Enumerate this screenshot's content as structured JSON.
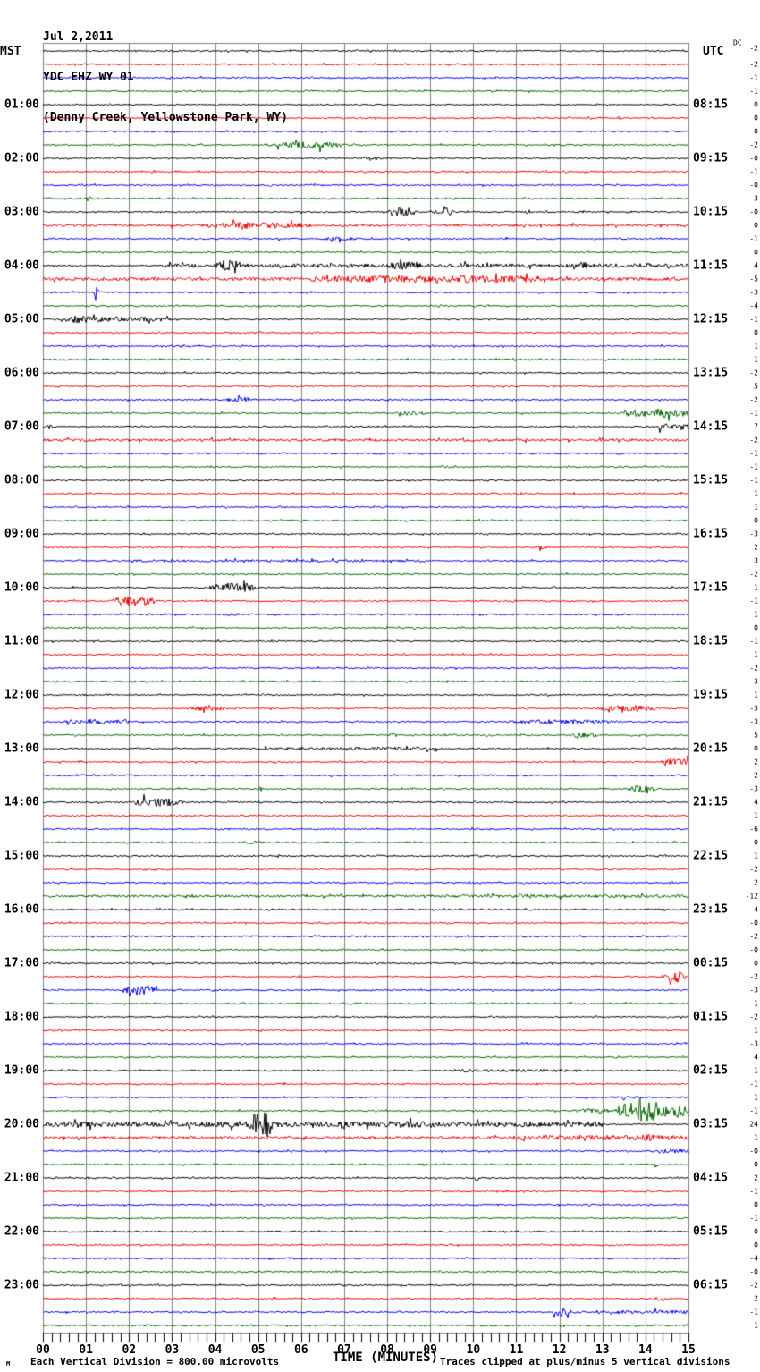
{
  "header": {
    "date": "Jul 2,2011",
    "station": "YDC EHZ WY 01",
    "location": "(Denny Creek, Yellowstone Park, WY)"
  },
  "axes": {
    "left_title": "MST",
    "right_title": "UTC",
    "dc_label": "DC",
    "x_title": "TIME (MINUTES)",
    "minute_ticks": [
      "00",
      "01",
      "02",
      "03",
      "04",
      "05",
      "06",
      "07",
      "08",
      "09",
      "10",
      "11",
      "12",
      "13",
      "14",
      "15"
    ]
  },
  "footer": {
    "scale_note": "Each Vertical Division =  800.00 microvolts",
    "clip_note": "Traces clipped at plus/minus 5 vertical divisions",
    "watermark": "M"
  },
  "colors": {
    "trace_cycle": [
      "#000000",
      "#ee0000",
      "#0000ee",
      "#006600"
    ],
    "grid": "#808080",
    "background": "#ffffff"
  },
  "chart_data": {
    "type": "seismogram-helicorder",
    "title": "YDC EHZ WY 01 (Denny Creek, Yellowstone Park, WY) Jul 2,2011",
    "xlabel": "TIME (MINUTES)",
    "x_range_minutes": [
      0,
      15
    ],
    "minutes_per_row": 15,
    "row_spacing_px": 15,
    "rows": [
      {
        "dc": "-2",
        "ev": []
      },
      {
        "dc": "-2",
        "ev": []
      },
      {
        "dc": "-1",
        "ev": []
      },
      {
        "dc": "-1",
        "ev": []
      },
      {
        "mst": "01:00",
        "utc": "08:15",
        "dc": "0",
        "ev": []
      },
      {
        "dc": "0",
        "ev": []
      },
      {
        "dc": "0",
        "ev": []
      },
      {
        "dc": "-2",
        "ev": [
          [
            5.0,
            7.2,
            3.5,
            "b"
          ],
          [
            6.2,
            6.7,
            4,
            "b"
          ]
        ]
      },
      {
        "mst": "02:00",
        "utc": "09:15",
        "dc": "-0",
        "ev": [
          [
            7.3,
            7.9,
            3,
            "b"
          ]
        ]
      },
      {
        "dc": "-1",
        "ev": []
      },
      {
        "dc": "-0",
        "ev": []
      },
      {
        "dc": "3",
        "ev": [
          [
            0.95,
            1.15,
            3,
            "b"
          ]
        ]
      },
      {
        "mst": "03:00",
        "utc": "10:15",
        "dc": "-0",
        "ev": [
          [
            8.0,
            8.7,
            5,
            "b"
          ],
          [
            9.05,
            9.55,
            5,
            "b"
          ],
          [
            11.1,
            11.4,
            2.5,
            "b"
          ],
          [
            12.4,
            12.65,
            2.5,
            "b"
          ]
        ]
      },
      {
        "dc": "0",
        "ev": [
          [
            0,
            15,
            1.3,
            "f"
          ],
          [
            3.4,
            6.5,
            3.5,
            "b"
          ],
          [
            4.4,
            4.9,
            4.5,
            "b"
          ]
        ]
      },
      {
        "dc": "-1",
        "ev": [
          [
            5.45,
            5.65,
            5,
            "s"
          ],
          [
            6.4,
            7.4,
            2,
            "b"
          ]
        ]
      },
      {
        "dc": "0",
        "ev": []
      },
      {
        "mst": "04:00",
        "utc": "11:15",
        "dc": "4",
        "ev": [
          [
            2.8,
            15,
            2.2,
            "f"
          ],
          [
            3.9,
            4.7,
            6,
            "b"
          ],
          [
            7.8,
            8.9,
            4.5,
            "b"
          ],
          [
            12.4,
            12.8,
            4,
            "b"
          ],
          [
            13.9,
            14.3,
            3,
            "b"
          ]
        ]
      },
      {
        "dc": "-5",
        "ev": [
          [
            0,
            15,
            1.8,
            "f"
          ],
          [
            6.2,
            11.6,
            3.5,
            "f"
          ],
          [
            7.2,
            8.6,
            4.5,
            "b"
          ],
          [
            9.3,
            10.6,
            4.5,
            "b"
          ]
        ]
      },
      {
        "dc": "-3",
        "ev": [
          [
            1.2,
            1.5,
            9,
            "s"
          ]
        ]
      },
      {
        "dc": "-4",
        "ev": []
      },
      {
        "mst": "05:00",
        "utc": "12:15",
        "dc": "-1",
        "ev": [
          [
            0,
            3.4,
            3,
            "b"
          ],
          [
            0.2,
            1.3,
            4,
            "b"
          ]
        ]
      },
      {
        "dc": "0",
        "ev": []
      },
      {
        "dc": "1",
        "ev": []
      },
      {
        "dc": "-1",
        "ev": []
      },
      {
        "mst": "06:00",
        "utc": "13:15",
        "dc": "-2",
        "ev": []
      },
      {
        "dc": "5",
        "ev": []
      },
      {
        "dc": "-2",
        "ev": [
          [
            4.2,
            5.0,
            3,
            "b"
          ]
        ]
      },
      {
        "dc": "-1",
        "ev": [
          [
            8.1,
            9.0,
            2.5,
            "b"
          ],
          [
            13.5,
            15,
            4,
            "f"
          ],
          [
            14.0,
            14.6,
            5,
            "b"
          ]
        ]
      },
      {
        "mst": "07:00",
        "utc": "14:15",
        "dc": "7",
        "ev": [
          [
            0.1,
            0.5,
            6,
            "s"
          ],
          [
            14.3,
            15,
            3.5,
            "f"
          ]
        ]
      },
      {
        "dc": "-2",
        "ev": [
          [
            0,
            15,
            1.4,
            "f"
          ]
        ]
      },
      {
        "dc": "-1",
        "ev": []
      },
      {
        "dc": "-1",
        "ev": [
          [
            9.2,
            9.5,
            2,
            "b"
          ]
        ]
      },
      {
        "mst": "08:00",
        "utc": "15:15",
        "dc": "-1",
        "ev": []
      },
      {
        "dc": "1",
        "ev": []
      },
      {
        "dc": "1",
        "ev": []
      },
      {
        "dc": "-0",
        "ev": []
      },
      {
        "mst": "09:00",
        "utc": "16:15",
        "dc": "-3",
        "ev": []
      },
      {
        "dc": "2",
        "ev": [
          [
            11.4,
            11.8,
            2,
            "b"
          ]
        ]
      },
      {
        "dc": "3",
        "ev": [
          [
            2,
            9,
            1.3,
            "f"
          ]
        ]
      },
      {
        "dc": "-2",
        "ev": []
      },
      {
        "mst": "10:00",
        "utc": "17:15",
        "dc": "1",
        "ev": [
          [
            3.8,
            5.0,
            5.5,
            "b"
          ]
        ]
      },
      {
        "dc": "-1",
        "ev": [
          [
            1.5,
            2.7,
            5.5,
            "b"
          ]
        ]
      },
      {
        "dc": "1",
        "ev": [
          [
            4.1,
            4.7,
            2,
            "b"
          ]
        ]
      },
      {
        "dc": "0",
        "ev": []
      },
      {
        "mst": "11:00",
        "utc": "18:15",
        "dc": "-1",
        "ev": []
      },
      {
        "dc": "1",
        "ev": []
      },
      {
        "dc": "-2",
        "ev": []
      },
      {
        "dc": "-3",
        "ev": []
      },
      {
        "mst": "12:00",
        "utc": "19:15",
        "dc": "1",
        "ev": []
      },
      {
        "dc": "-3",
        "ev": [
          [
            3.3,
            4.3,
            3,
            "b"
          ],
          [
            12.8,
            14.4,
            3.5,
            "b"
          ]
        ]
      },
      {
        "dc": "-3",
        "ev": [
          [
            0.3,
            2.2,
            3,
            "b"
          ],
          [
            10.5,
            13.6,
            2.5,
            "b"
          ]
        ]
      },
      {
        "dc": "5",
        "ev": [
          [
            8.0,
            8.25,
            3,
            "b"
          ],
          [
            12.1,
            13.0,
            3,
            "b"
          ]
        ]
      },
      {
        "mst": "13:00",
        "utc": "20:15",
        "dc": "0",
        "ev": [
          [
            5,
            9.2,
            1.8,
            "f"
          ]
        ]
      },
      {
        "dc": "2",
        "ev": [
          [
            14.4,
            15,
            4,
            "f"
          ]
        ]
      },
      {
        "dc": "2",
        "ev": []
      },
      {
        "dc": "-3",
        "ev": [
          [
            5.0,
            5.2,
            6,
            "s"
          ],
          [
            13.5,
            14.3,
            4,
            "b"
          ]
        ]
      },
      {
        "mst": "14:00",
        "utc": "21:15",
        "dc": "4",
        "ev": [
          [
            2.0,
            3.3,
            5,
            "b"
          ]
        ]
      },
      {
        "dc": "1",
        "ev": []
      },
      {
        "dc": "-6",
        "ev": []
      },
      {
        "dc": "-0",
        "ev": [
          [
            4.5,
            5.2,
            2,
            "b"
          ]
        ]
      },
      {
        "mst": "15:00",
        "utc": "22:15",
        "dc": "1",
        "ev": []
      },
      {
        "dc": "-2",
        "ev": []
      },
      {
        "dc": "2",
        "ev": []
      },
      {
        "dc": "-12",
        "ev": [
          [
            0,
            15,
            1.3,
            "f"
          ],
          [
            9,
            15,
            1.6,
            "f"
          ]
        ]
      },
      {
        "mst": "16:00",
        "utc": "23:15",
        "dc": "-4",
        "ev": []
      },
      {
        "dc": "-0",
        "ev": []
      },
      {
        "dc": "-2",
        "ev": []
      },
      {
        "dc": "-0",
        "ev": []
      },
      {
        "mst": "17:00",
        "utc": "00:15",
        "dc": "0",
        "ev": []
      },
      {
        "dc": "-2",
        "ev": [
          [
            14.35,
            14.95,
            7,
            "b"
          ]
        ]
      },
      {
        "dc": "-3",
        "ev": [
          [
            1.8,
            2.7,
            6,
            "b"
          ],
          [
            6.3,
            6.5,
            3,
            "s"
          ]
        ]
      },
      {
        "dc": "-1",
        "ev": []
      },
      {
        "mst": "18:00",
        "utc": "01:15",
        "dc": "-2",
        "ev": []
      },
      {
        "dc": "1",
        "ev": []
      },
      {
        "dc": "-3",
        "ev": []
      },
      {
        "dc": "4",
        "ev": []
      },
      {
        "mst": "19:00",
        "utc": "02:15",
        "dc": "-1",
        "ev": [
          [
            9.5,
            12.5,
            1.6,
            "f"
          ]
        ]
      },
      {
        "dc": "-1",
        "ev": [
          [
            5.5,
            5.7,
            2,
            "b"
          ]
        ]
      },
      {
        "dc": "1",
        "ev": [
          [
            13,
            14,
            1.5,
            "b"
          ]
        ]
      },
      {
        "dc": "-1",
        "ev": [
          [
            12.3,
            13.3,
            3,
            "b"
          ],
          [
            13.3,
            14.6,
            12,
            "b"
          ],
          [
            14.6,
            15,
            6,
            "f"
          ]
        ]
      },
      {
        "mst": "20:00",
        "utc": "03:15",
        "dc": "24",
        "ev": [
          [
            0,
            13,
            2.8,
            "f"
          ],
          [
            0,
            1.5,
            3.5,
            "b"
          ],
          [
            3.5,
            6.5,
            4,
            "b"
          ],
          [
            4.75,
            5.45,
            14,
            "b"
          ],
          [
            7.6,
            9.2,
            4,
            "b"
          ]
        ]
      },
      {
        "dc": "1",
        "ev": [
          [
            0,
            15,
            1.5,
            "f"
          ],
          [
            10.8,
            15,
            2.8,
            "f"
          ],
          [
            13.9,
            14.25,
            4,
            "b"
          ]
        ]
      },
      {
        "dc": "-0",
        "ev": [
          [
            14.3,
            15,
            2.5,
            "f"
          ]
        ]
      },
      {
        "dc": "-0",
        "ev": [
          [
            14.2,
            14.55,
            6,
            "s"
          ]
        ]
      },
      {
        "mst": "21:00",
        "utc": "04:15",
        "dc": "2",
        "ev": [
          [
            10.05,
            10.3,
            5,
            "s"
          ]
        ]
      },
      {
        "dc": "-1",
        "ev": []
      },
      {
        "dc": "0",
        "ev": []
      },
      {
        "dc": "-1",
        "ev": []
      },
      {
        "mst": "22:00",
        "utc": "05:15",
        "dc": "0",
        "ev": []
      },
      {
        "dc": "0",
        "ev": []
      },
      {
        "dc": "-4",
        "ev": [
          [
            1.45,
            1.65,
            3,
            "s"
          ]
        ]
      },
      {
        "dc": "-0",
        "ev": []
      },
      {
        "mst": "23:00",
        "utc": "06:15",
        "dc": "-2",
        "ev": []
      },
      {
        "dc": "2",
        "ev": [
          [
            14.2,
            14.55,
            3,
            "b"
          ]
        ]
      },
      {
        "dc": "-1",
        "ev": [
          [
            11.85,
            12.8,
            11,
            "s"
          ],
          [
            12.8,
            15,
            2,
            "f"
          ]
        ]
      },
      {
        "dc": "1",
        "ev": []
      }
    ]
  }
}
